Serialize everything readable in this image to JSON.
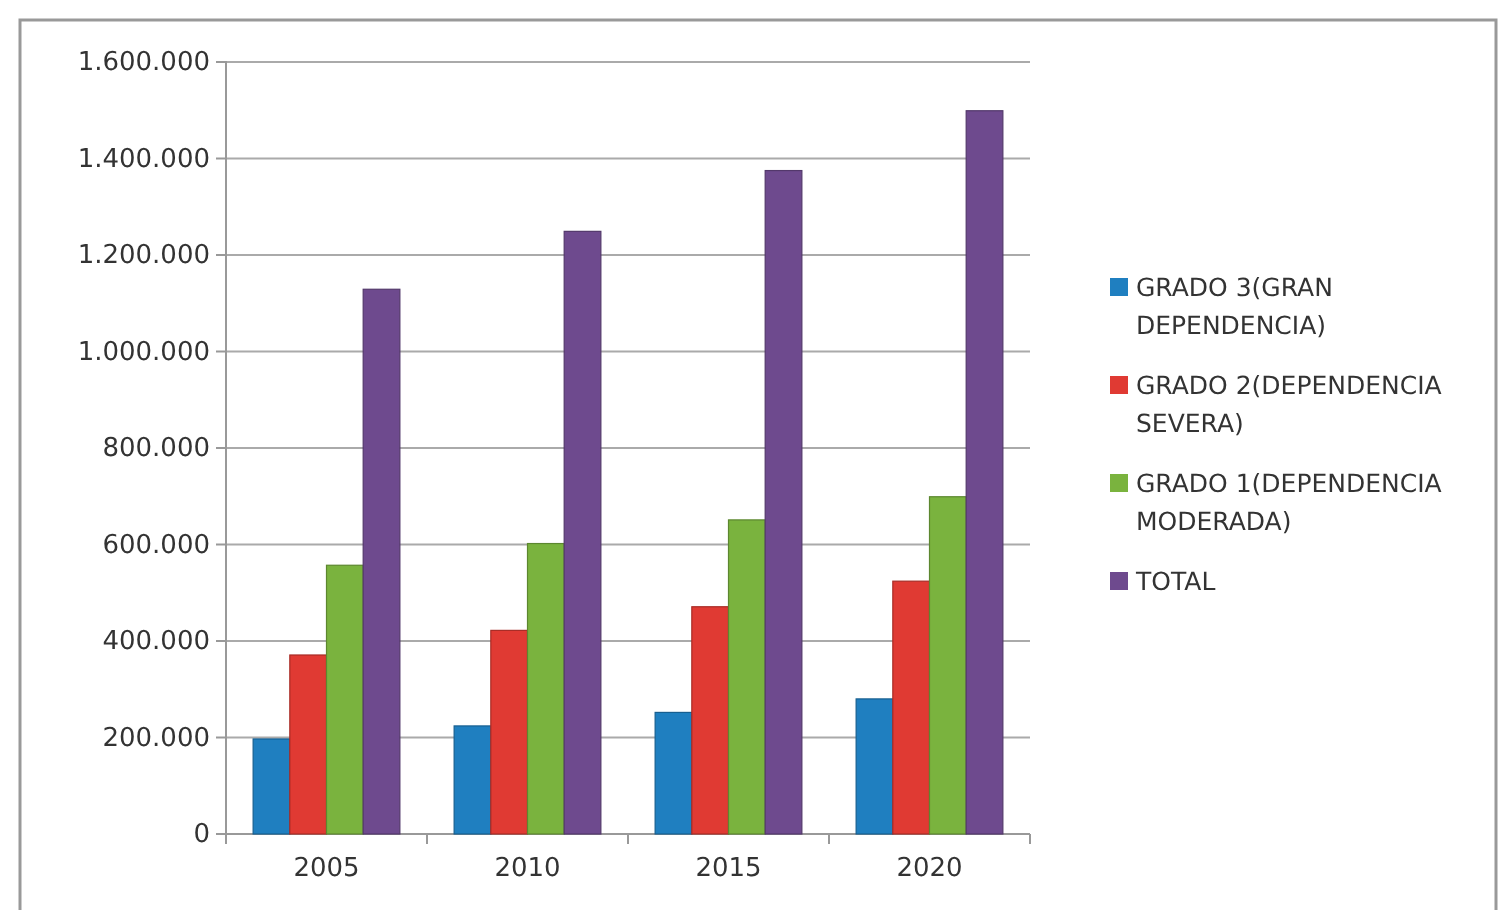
{
  "chart_data": {
    "type": "bar",
    "categories": [
      "2005",
      "2010",
      "2015",
      "2020"
    ],
    "series": [
      {
        "name": "GRADO 3(GRAN DEPENDENCIA)",
        "color": "#1f7fc0",
        "values": [
          197000,
          224000,
          252000,
          280000
        ]
      },
      {
        "name": "GRADO 2(DEPENDENCIA SEVERA)",
        "color": "#e03a33",
        "values": [
          371000,
          422000,
          471000,
          524000
        ]
      },
      {
        "name": "GRADO 1(DEPENDENCIA MODERADA)",
        "color": "#7ab33e",
        "values": [
          557000,
          602000,
          651000,
          699000
        ]
      },
      {
        "name": "TOTAL",
        "color": "#6e4a8e",
        "values": [
          1129000,
          1249000,
          1375000,
          1499000
        ]
      }
    ],
    "ylim": [
      0,
      1600000
    ],
    "yticks": [
      {
        "value": 0,
        "label": "0"
      },
      {
        "value": 200000,
        "label": "200.000"
      },
      {
        "value": 400000,
        "label": "400.000"
      },
      {
        "value": 600000,
        "label": "600.000"
      },
      {
        "value": 800000,
        "label": "800.000"
      },
      {
        "value": 1000000,
        "label": "1.000.000"
      },
      {
        "value": 1200000,
        "label": "1.200.000"
      },
      {
        "value": 1400000,
        "label": "1.400.000"
      },
      {
        "value": 1600000,
        "label": "1.600.000"
      }
    ],
    "grid": "y",
    "legend": "right"
  }
}
